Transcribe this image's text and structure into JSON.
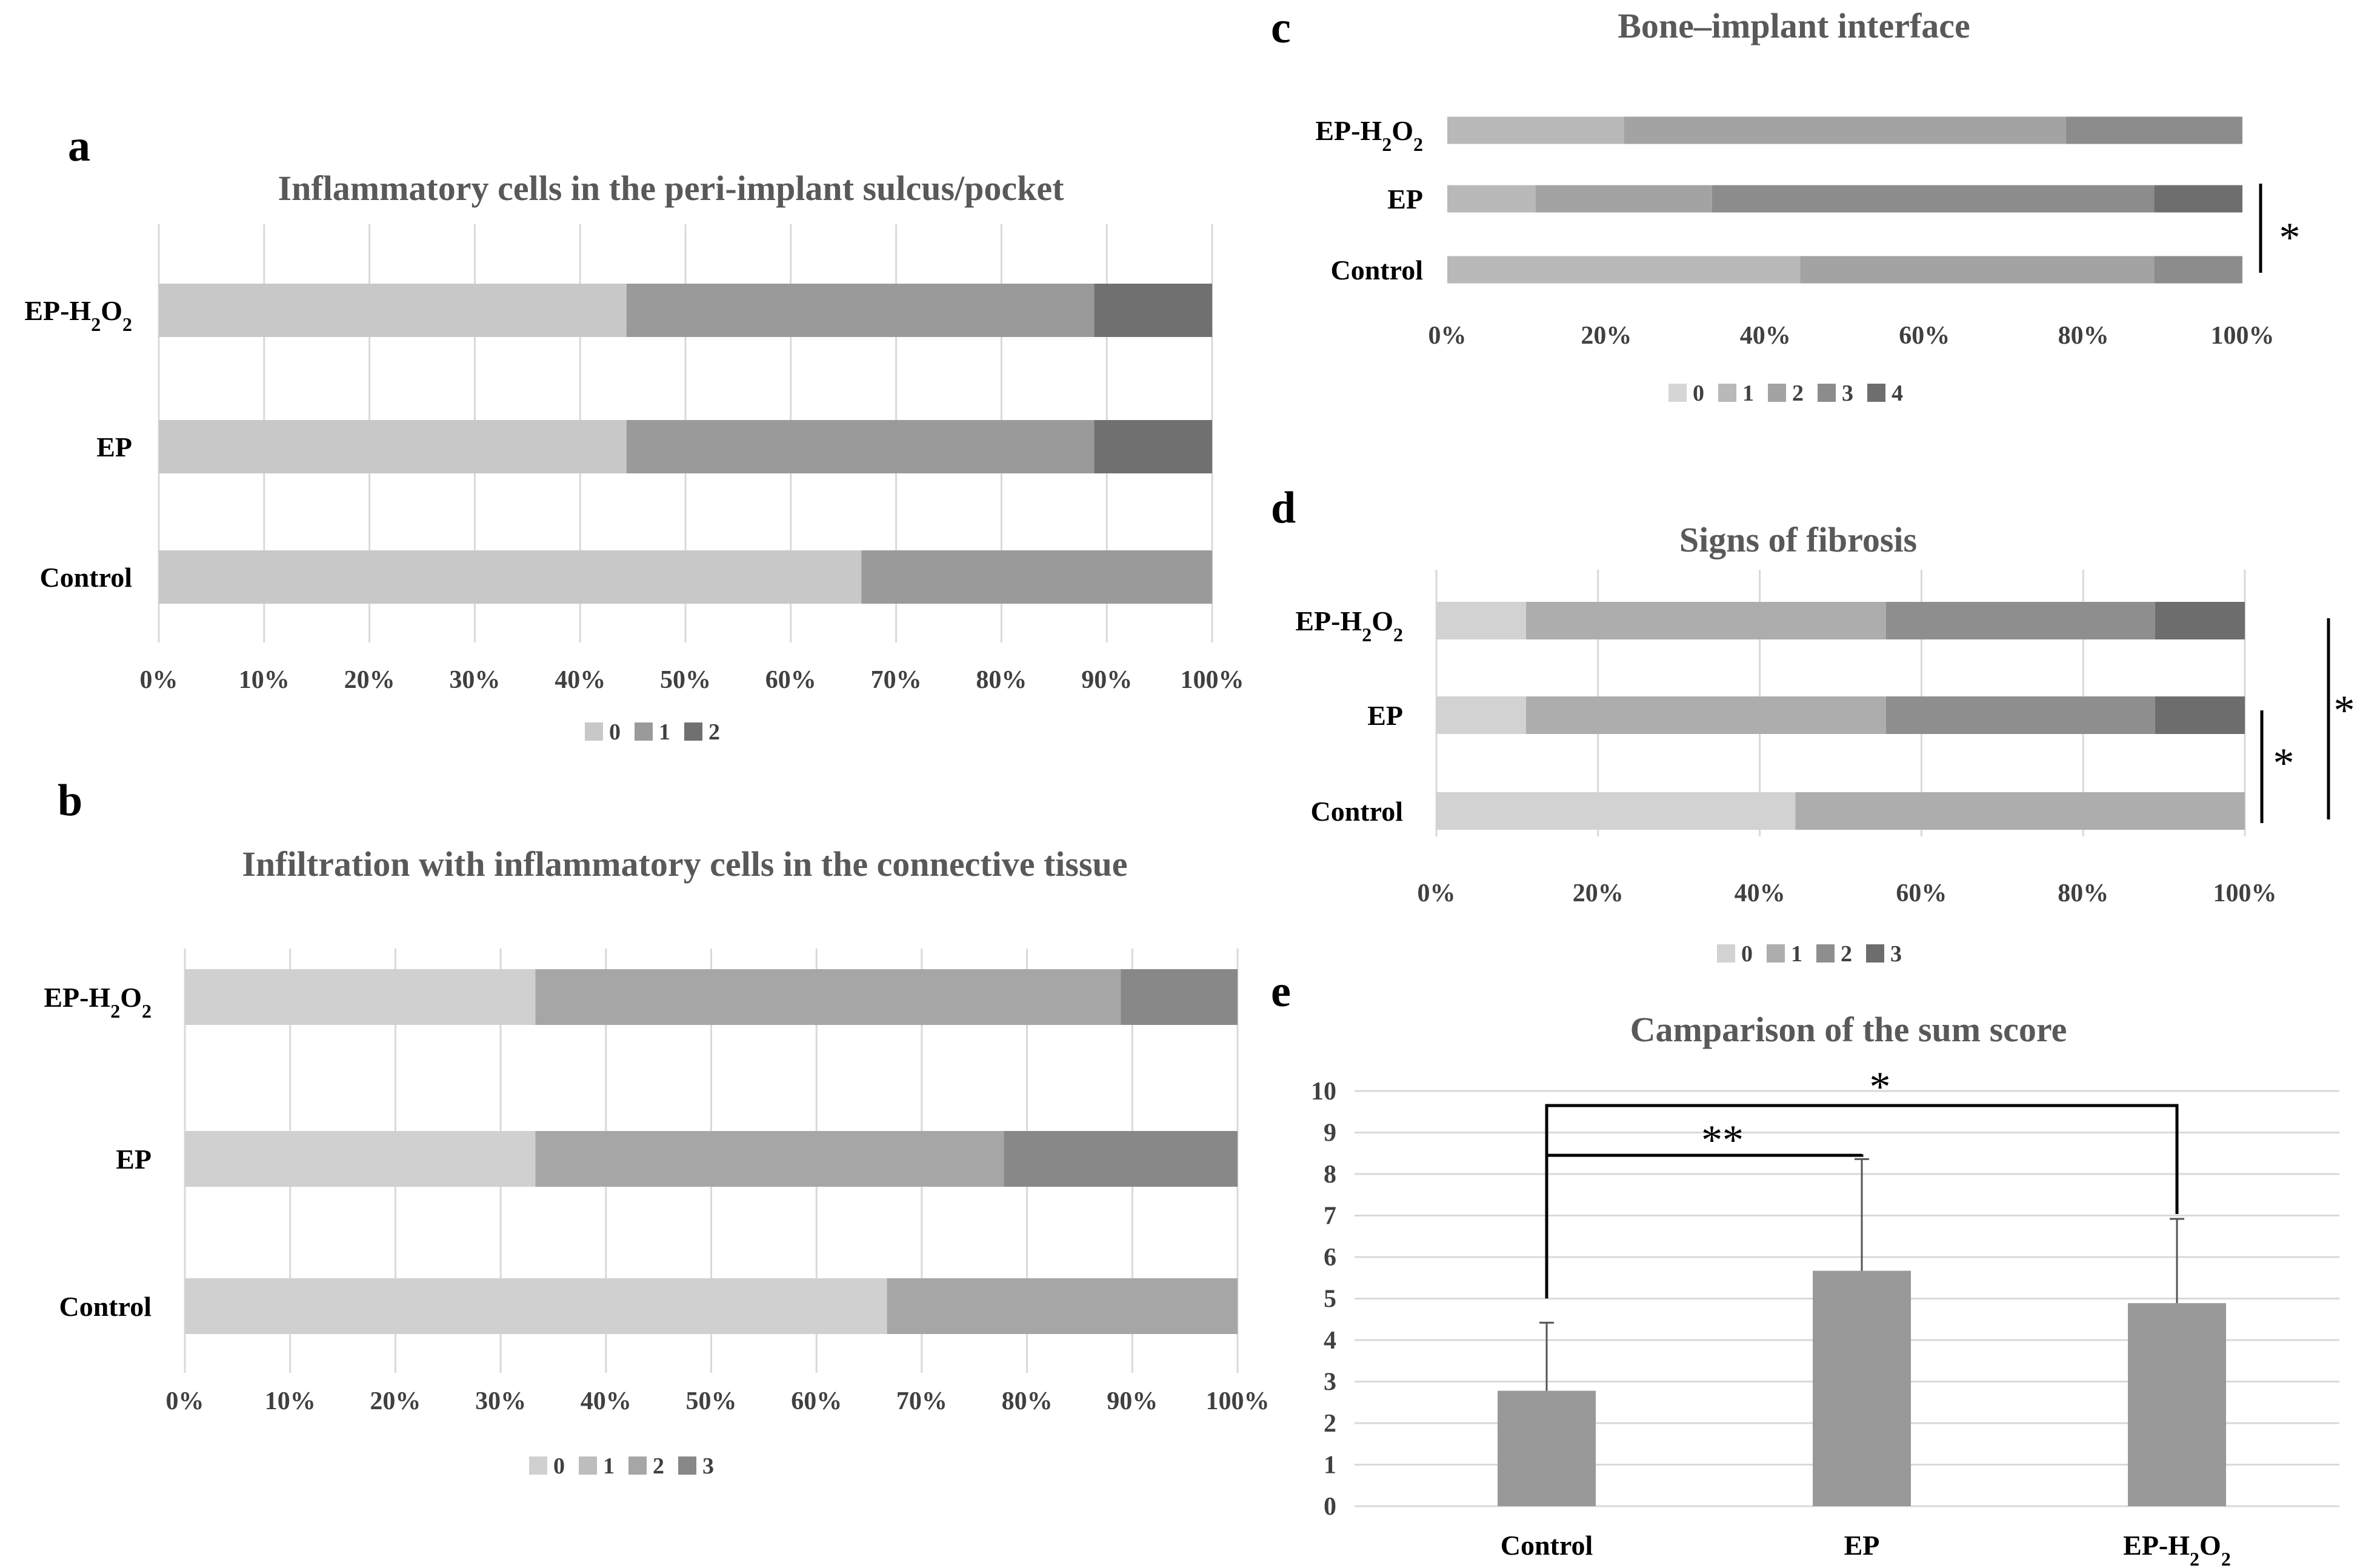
{
  "chart_data": [
    {
      "panel": "a",
      "type": "bar",
      "orientation": "horizontal-stacked-100",
      "title": "Inflammatory cells in the peri-implant sulcus/pocket",
      "categories": [
        "EP-H2O2",
        "EP",
        "Control"
      ],
      "category_labels": [
        {
          "base": "EP-H",
          "sub1": "2",
          "mid": "O",
          "sub2": "2"
        },
        {
          "base": "EP"
        },
        {
          "base": "Control"
        }
      ],
      "series": [
        {
          "name": "0",
          "values": [
            44.4,
            44.4,
            66.7
          ]
        },
        {
          "name": "1",
          "values": [
            44.4,
            44.4,
            33.3
          ]
        },
        {
          "name": "2",
          "values": [
            11.2,
            11.2,
            0
          ]
        }
      ],
      "ticks": [
        "0%",
        "10%",
        "20%",
        "30%",
        "40%",
        "50%",
        "60%",
        "70%",
        "80%",
        "90%",
        "100%"
      ],
      "xlim": [
        0,
        100
      ],
      "grid": true,
      "legend": [
        "0",
        "1",
        "2"
      ],
      "significance": []
    },
    {
      "panel": "b",
      "type": "bar",
      "orientation": "horizontal-stacked-100",
      "title": "Infiltration with inflammatory cells in the connective tissue",
      "categories": [
        "EP-H2O2",
        "EP",
        "Control"
      ],
      "category_labels": [
        {
          "base": "EP-H",
          "sub1": "2",
          "mid": "O",
          "sub2": "2"
        },
        {
          "base": "EP"
        },
        {
          "base": "Control"
        }
      ],
      "series": [
        {
          "name": "0",
          "values": [
            33.3,
            33.3,
            66.7
          ]
        },
        {
          "name": "1",
          "values": [
            0,
            0,
            0
          ]
        },
        {
          "name": "2",
          "values": [
            55.6,
            44.5,
            33.3
          ]
        },
        {
          "name": "3",
          "values": [
            11.1,
            22.2,
            0
          ]
        }
      ],
      "ticks": [
        "0%",
        "10%",
        "20%",
        "30%",
        "40%",
        "50%",
        "60%",
        "70%",
        "80%",
        "90%",
        "100%"
      ],
      "xlim": [
        0,
        100
      ],
      "grid": true,
      "legend": [
        "0",
        "1",
        "2",
        "3"
      ],
      "significance": []
    },
    {
      "panel": "c",
      "type": "bar",
      "orientation": "horizontal-stacked-100",
      "title": "Bone–implant interface",
      "categories": [
        "EP-H2O2",
        "EP",
        "Control"
      ],
      "category_labels": [
        {
          "base": "EP-H",
          "sub1": "2",
          "mid": "O",
          "sub2": "2"
        },
        {
          "base": "EP"
        },
        {
          "base": "Control"
        }
      ],
      "series": [
        {
          "name": "0",
          "values": [
            0,
            0,
            0
          ]
        },
        {
          "name": "1",
          "values": [
            22.2,
            11.1,
            44.4
          ]
        },
        {
          "name": "2",
          "values": [
            55.6,
            22.2,
            44.5
          ]
        },
        {
          "name": "3",
          "values": [
            22.2,
            55.6,
            11.1
          ]
        },
        {
          "name": "4",
          "values": [
            0,
            11.1,
            0
          ]
        }
      ],
      "ticks": [
        "0%",
        "20%",
        "40%",
        "60%",
        "80%",
        "100%"
      ],
      "xlim": [
        0,
        100
      ],
      "grid": false,
      "legend": [
        "0",
        "1",
        "2",
        "3",
        "4"
      ],
      "significance": [
        {
          "between": [
            "EP",
            "Control"
          ],
          "label": "*"
        }
      ]
    },
    {
      "panel": "d",
      "type": "bar",
      "orientation": "horizontal-stacked-100",
      "title": "Signs of fibrosis",
      "categories": [
        "EP-H2O2",
        "EP",
        "Control"
      ],
      "category_labels": [
        {
          "base": "EP-H",
          "sub1": "2",
          "mid": "O",
          "sub2": "2"
        },
        {
          "base": "EP"
        },
        {
          "base": "Control"
        }
      ],
      "series": [
        {
          "name": "0",
          "values": [
            11.1,
            11.1,
            44.4
          ]
        },
        {
          "name": "1",
          "values": [
            44.5,
            44.5,
            55.6
          ]
        },
        {
          "name": "2",
          "values": [
            33.3,
            33.3,
            0
          ]
        },
        {
          "name": "3",
          "values": [
            11.1,
            11.1,
            0
          ]
        }
      ],
      "ticks": [
        "0%",
        "20%",
        "40%",
        "60%",
        "80%",
        "100%"
      ],
      "xlim": [
        0,
        100
      ],
      "grid": true,
      "legend": [
        "0",
        "1",
        "2",
        "3"
      ],
      "significance": [
        {
          "between": [
            "EP",
            "Control"
          ],
          "label": "*"
        },
        {
          "between": [
            "EP-H2O2",
            "Control"
          ],
          "label": "*"
        }
      ]
    },
    {
      "panel": "e",
      "type": "bar",
      "orientation": "vertical",
      "title": "Camparison of the sum score",
      "categories": [
        "Control",
        "EP",
        "EP-H2O2"
      ],
      "category_labels": [
        {
          "base": "Control"
        },
        {
          "base": "EP"
        },
        {
          "base": "EP-H",
          "sub1": "2",
          "mid": "O",
          "sub2": "2"
        }
      ],
      "values": [
        2.78,
        5.67,
        4.89
      ],
      "error": [
        1.64,
        2.69,
        2.03
      ],
      "ylim": [
        0,
        10
      ],
      "yticks": [
        "0",
        "1",
        "2",
        "3",
        "4",
        "5",
        "6",
        "7",
        "8",
        "9",
        "10"
      ],
      "grid": true,
      "significance": [
        {
          "between": [
            "Control",
            "EP"
          ],
          "label": "**"
        },
        {
          "between": [
            "Control",
            "EP-H2O2"
          ],
          "label": "*"
        }
      ]
    }
  ],
  "colors": {
    "a": [
      "#c8c8c8",
      "#9a9a9a",
      "#707070"
    ],
    "b": [
      "#d0d0d0",
      "#bdbdbd",
      "#a6a6a6",
      "#888888"
    ],
    "c": [
      "#d6d6d6",
      "#b9b9b9",
      "#a3a3a3",
      "#8c8c8c",
      "#6e6e6e"
    ],
    "d": [
      "#d2d2d2",
      "#adadad",
      "#8e8e8e",
      "#6d6d6d"
    ],
    "e": [
      "#999999"
    ],
    "text": "#404040",
    "grid": "#d9d9d9"
  }
}
